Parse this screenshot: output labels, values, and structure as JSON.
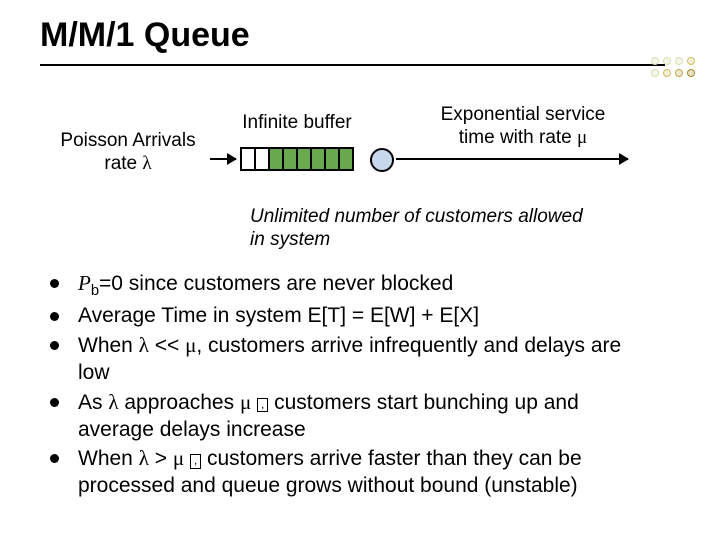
{
  "title": "M/M/1 Queue",
  "corner_dots": {
    "rows": 2,
    "cols": 4,
    "colors": [
      "#d8e0b0",
      "#d8e0b0",
      "#d8e0b0",
      "#d0c060",
      "#d8e0b0",
      "#d0c060",
      "#c0a848",
      "#a88828"
    ]
  },
  "diagram": {
    "arrivals_html": "Poisson Arrivals<br>rate <span class='sym'>λ</span>",
    "infinite_label": "Infinite buffer",
    "exponential_html": "Exponential service<br>time with rate <span class='sym'>μ</span>",
    "buffer": {
      "cells": 8,
      "filled_from": 2,
      "fill_color": "#6aa84f"
    },
    "server_fill": "#c8d8ec",
    "unlimited_html": "Unlimited number of customers allowed in system"
  },
  "bullets": [
    "<span class='ital'>P</span><sub>b</sub>=0 since customers are never blocked",
    "Average Time in system E[T] = E[W] + E[X]",
    "When <span class='sym'>λ</span> &lt;&lt; <span class='sym'>μ</span>, customers arrive infrequently and delays are low",
    "As <span class='sym'>λ</span> approaches  <span class='sym'>μ</span> <span class='box'>,</span>  customers start bunching up and average delays increase",
    "When <span class='sym'>λ</span> &gt; <span class='sym'>μ</span> <span class='box'>,</span>  customers arrive faster than they can be processed and queue grows without bound (unstable)"
  ]
}
